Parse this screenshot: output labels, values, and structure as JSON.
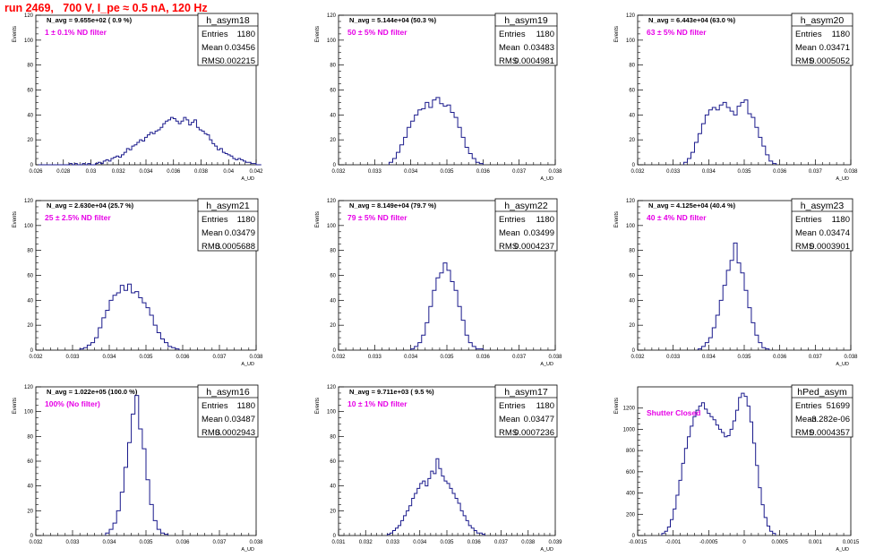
{
  "page_title": "run 2469,   700 V, I_pe ≈ 0.5 nA, 120 Hz",
  "colors": {
    "histogram_line": "#1a1a8c",
    "title_red": "#ff0000",
    "label_magenta": "#e600e6"
  },
  "stats_labels": {
    "entries": "Entries",
    "mean": "Mean",
    "rms": "RMS"
  },
  "common_axes": {
    "ylabel": "Events",
    "xlabel": "A_UD"
  },
  "chart_data": [
    {
      "type": "bar",
      "name": "h_asym18",
      "navg": "N_avg = 9.655e+02 ( 0.9 %)",
      "filter_label": "1 ± 0.1% ND filter",
      "stats": {
        "entries": "1180",
        "mean": "0.03456",
        "rms": "0.002215"
      },
      "xlim": [
        0.026,
        0.043
      ],
      "ylim": [
        0,
        120
      ],
      "xticks": [
        "0.026",
        "0.028",
        "0.03",
        "0.032",
        "0.034",
        "0.036",
        "0.038",
        "0.04",
        "0.042"
      ],
      "yticks": [
        "0",
        "20",
        "40",
        "60",
        "80",
        "100",
        "120"
      ],
      "x_start": 0.0262,
      "bin_width": 0.0002,
      "values": [
        0,
        0,
        0,
        0,
        0,
        0,
        0,
        0,
        0,
        0,
        0,
        0,
        1,
        0,
        1,
        0,
        0,
        1,
        0,
        1,
        0,
        0,
        1,
        2,
        1,
        3,
        4,
        3,
        5,
        6,
        7,
        6,
        8,
        10,
        13,
        12,
        15,
        16,
        18,
        20,
        19,
        22,
        24,
        26,
        25,
        27,
        28,
        30,
        33,
        35,
        36,
        38,
        37,
        35,
        33,
        35,
        38,
        36,
        32,
        34,
        36,
        30,
        28,
        27,
        25,
        24,
        20,
        17,
        15,
        12,
        13,
        10,
        9,
        8,
        7,
        5,
        4,
        5,
        4,
        3,
        2,
        2,
        1,
        1,
        0,
        0
      ]
    },
    {
      "type": "bar",
      "name": "h_asym19",
      "navg": "N_avg = 5.144e+04 (50.3 %)",
      "filter_label": "50 ± 5% ND filter",
      "stats": {
        "entries": "1180",
        "mean": "0.03483",
        "rms": "0.0004981"
      },
      "xlim": [
        0.032,
        0.038
      ],
      "ylim": [
        0,
        120
      ],
      "xticks": [
        "0.032",
        "0.033",
        "0.034",
        "0.035",
        "0.036",
        "0.037",
        "0.038"
      ],
      "yticks": [
        "0",
        "20",
        "40",
        "60",
        "80",
        "100",
        "120"
      ],
      "x_start": 0.0334,
      "bin_width": 0.0001,
      "values": [
        2,
        5,
        10,
        16,
        22,
        30,
        35,
        40,
        44,
        45,
        50,
        46,
        52,
        54,
        49,
        47,
        48,
        42,
        38,
        30,
        22,
        14,
        9,
        5,
        2,
        1
      ]
    },
    {
      "type": "bar",
      "name": "h_asym20",
      "navg": "N_avg = 6.443e+04 (63.0 %)",
      "filter_label": "63 ± 5% ND filter",
      "stats": {
        "entries": "1180",
        "mean": "0.03471",
        "rms": "0.0005052"
      },
      "xlim": [
        0.032,
        0.038
      ],
      "ylim": [
        0,
        120
      ],
      "xticks": [
        "0.032",
        "0.033",
        "0.034",
        "0.035",
        "0.036",
        "0.037",
        "0.038"
      ],
      "yticks": [
        "0",
        "20",
        "40",
        "60",
        "80",
        "100",
        "120"
      ],
      "x_start": 0.0333,
      "bin_width": 0.0001,
      "values": [
        2,
        5,
        10,
        18,
        25,
        33,
        40,
        44,
        46,
        44,
        48,
        50,
        46,
        43,
        40,
        47,
        50,
        52,
        41,
        38,
        30,
        22,
        15,
        8,
        3,
        1
      ]
    },
    {
      "type": "bar",
      "name": "h_asym21",
      "navg": "N_avg = 2.630e+04 (25.7 %)",
      "filter_label": "25 ± 2.5% ND filter",
      "stats": {
        "entries": "1180",
        "mean": "0.03479",
        "rms": "0.0005688"
      },
      "xlim": [
        0.032,
        0.038
      ],
      "ylim": [
        0,
        120
      ],
      "xticks": [
        "0.032",
        "0.033",
        "0.034",
        "0.035",
        "0.036",
        "0.037",
        "0.038"
      ],
      "yticks": [
        "0",
        "20",
        "40",
        "60",
        "80",
        "100",
        "120"
      ],
      "x_start": 0.0332,
      "bin_width": 0.0001,
      "values": [
        1,
        2,
        4,
        6,
        10,
        18,
        26,
        32,
        40,
        44,
        46,
        52,
        48,
        53,
        46,
        47,
        42,
        38,
        34,
        28,
        20,
        14,
        9,
        6,
        3,
        2,
        1
      ]
    },
    {
      "type": "bar",
      "name": "h_asym22",
      "navg": "N_avg = 8.149e+04 (79.7 %)",
      "filter_label": "79 ± 5% ND filter",
      "stats": {
        "entries": "1180",
        "mean": "0.03499",
        "rms": "0.0004237"
      },
      "xlim": [
        0.032,
        0.038
      ],
      "ylim": [
        0,
        120
      ],
      "xticks": [
        "0.032",
        "0.033",
        "0.034",
        "0.035",
        "0.036",
        "0.037",
        "0.038"
      ],
      "yticks": [
        "0",
        "20",
        "40",
        "60",
        "80",
        "100",
        "120"
      ],
      "x_start": 0.034,
      "bin_width": 0.0001,
      "values": [
        1,
        3,
        6,
        12,
        22,
        35,
        48,
        58,
        62,
        70,
        64,
        55,
        48,
        35,
        24,
        12,
        6,
        3,
        1,
        1
      ]
    },
    {
      "type": "bar",
      "name": "h_asym23",
      "navg": "N_avg = 4.125e+04 (40.4 %)",
      "filter_label": "40 ± 4% ND filter",
      "stats": {
        "entries": "1180",
        "mean": "0.03474",
        "rms": "0.0003901"
      },
      "xlim": [
        0.032,
        0.038
      ],
      "ylim": [
        0,
        120
      ],
      "xticks": [
        "0.032",
        "0.033",
        "0.034",
        "0.035",
        "0.036",
        "0.037",
        "0.038"
      ],
      "yticks": [
        "0",
        "20",
        "40",
        "60",
        "80",
        "100",
        "120"
      ],
      "x_start": 0.0337,
      "bin_width": 0.0001,
      "values": [
        1,
        3,
        6,
        10,
        18,
        28,
        40,
        52,
        64,
        72,
        86,
        70,
        62,
        48,
        34,
        22,
        12,
        6,
        2,
        1
      ]
    },
    {
      "type": "bar",
      "name": "h_asym16",
      "navg": "N_avg = 1.022e+05 (100.0 %)",
      "filter_label": "100% (No filter)",
      "stats": {
        "entries": "1180",
        "mean": "0.03487",
        "rms": "0.0002943"
      },
      "xlim": [
        0.032,
        0.038
      ],
      "ylim": [
        0,
        120
      ],
      "xticks": [
        "0.032",
        "0.033",
        "0.034",
        "0.035",
        "0.036",
        "0.037",
        "0.038"
      ],
      "yticks": [
        "0",
        "20",
        "40",
        "60",
        "80",
        "100",
        "120"
      ],
      "x_start": 0.0339,
      "bin_width": 0.0001,
      "values": [
        2,
        5,
        10,
        20,
        35,
        55,
        75,
        98,
        113,
        86,
        70,
        45,
        25,
        12,
        5,
        2,
        1
      ]
    },
    {
      "type": "bar",
      "name": "h_asym17",
      "navg": "N_avg = 9.711e+03 ( 9.5 %)",
      "filter_label": "10 ± 1% ND filter",
      "stats": {
        "entries": "1180",
        "mean": "0.03477",
        "rms": "0.0007236"
      },
      "xlim": [
        0.031,
        0.039
      ],
      "ylim": [
        0,
        120
      ],
      "xticks": [
        "0.031",
        "0.032",
        "0.033",
        "0.034",
        "0.035",
        "0.036",
        "0.037",
        "0.038",
        "0.039"
      ],
      "yticks": [
        "0",
        "20",
        "40",
        "60",
        "80",
        "100",
        "120"
      ],
      "x_start": 0.0328,
      "bin_width": 0.0001,
      "values": [
        1,
        2,
        4,
        6,
        8,
        12,
        16,
        20,
        24,
        30,
        34,
        38,
        42,
        44,
        40,
        46,
        52,
        50,
        62,
        54,
        48,
        44,
        42,
        38,
        34,
        30,
        26,
        20,
        16,
        12,
        8,
        6,
        4,
        2,
        2,
        1
      ]
    },
    {
      "type": "bar",
      "name": "hPed_asym",
      "navg": "",
      "filter_label": "Shutter Closed",
      "stats": {
        "entries": "51699",
        "mean": "-3.282e-06",
        "rms": "0.0004357"
      },
      "xlim": [
        -0.0015,
        0.0015
      ],
      "ylim": [
        0,
        1400
      ],
      "xticks": [
        "-0.0015",
        "-0.001",
        "-0.0005",
        "0",
        "0.0005",
        "0.001",
        "0.0015"
      ],
      "yticks": [
        "0",
        "200",
        "400",
        "600",
        "800",
        "1000",
        "1200"
      ],
      "x_start": -0.00116,
      "bin_width": 4e-05,
      "values": [
        20,
        40,
        80,
        150,
        250,
        380,
        520,
        680,
        820,
        930,
        1030,
        1120,
        1180,
        1220,
        1250,
        1190,
        1150,
        1120,
        1090,
        1040,
        1000,
        970,
        930,
        940,
        1000,
        1080,
        1180,
        1300,
        1340,
        1310,
        1220,
        1070,
        870,
        660,
        450,
        290,
        170,
        90,
        40,
        20
      ]
    }
  ]
}
